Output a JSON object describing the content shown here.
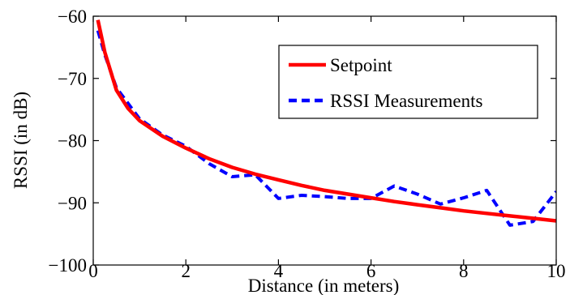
{
  "chart_data": {
    "type": "line",
    "title": "",
    "xlabel": "Distance (in meters)",
    "ylabel": "RSSI (in dB)",
    "xlim": [
      0,
      10
    ],
    "ylim": [
      -100,
      -60
    ],
    "xticks": [
      0,
      2,
      4,
      6,
      8,
      10
    ],
    "yticks": [
      -100,
      -90,
      -80,
      -70,
      -60
    ],
    "xtick_labels": [
      "0",
      "2",
      "4",
      "6",
      "8",
      "10"
    ],
    "ytick_labels": [
      "−100",
      "−90",
      "−80",
      "−70",
      "−60"
    ],
    "grid": false,
    "legend_position": "top-right",
    "series": [
      {
        "name": "Setpoint",
        "color": "#ff0000",
        "style": "solid",
        "x": [
          0.1,
          0.25,
          0.5,
          0.75,
          1,
          1.5,
          2,
          2.5,
          3,
          3.5,
          4,
          4.5,
          5,
          5.5,
          6,
          6.5,
          7,
          7.5,
          8,
          8.5,
          9,
          9.5,
          10
        ],
        "y": [
          -60.6,
          -65.8,
          -71.9,
          -74.8,
          -76.8,
          -79.3,
          -81.2,
          -82.9,
          -84.3,
          -85.4,
          -86.3,
          -87.2,
          -88.0,
          -88.6,
          -89.2,
          -89.8,
          -90.3,
          -90.8,
          -91.3,
          -91.7,
          -92.1,
          -92.5,
          -92.9
        ]
      },
      {
        "name": "RSSI Measurements",
        "color": "#0000ff",
        "style": "dashed",
        "x": [
          0.1,
          0.25,
          0.5,
          1,
          1.5,
          2,
          2.5,
          3,
          3.5,
          4,
          4.5,
          5,
          5.5,
          6,
          6.5,
          7,
          7.5,
          8,
          8.5,
          9,
          9.5,
          10
        ],
        "y": [
          -62.3,
          -66.2,
          -71.5,
          -76.5,
          -79.1,
          -80.9,
          -83.7,
          -85.8,
          -85.5,
          -89.3,
          -88.8,
          -89.0,
          -89.3,
          -89.3,
          -87.3,
          -88.6,
          -90.2,
          -89.2,
          -88.0,
          -93.6,
          -93.0,
          -88.2
        ]
      }
    ]
  }
}
